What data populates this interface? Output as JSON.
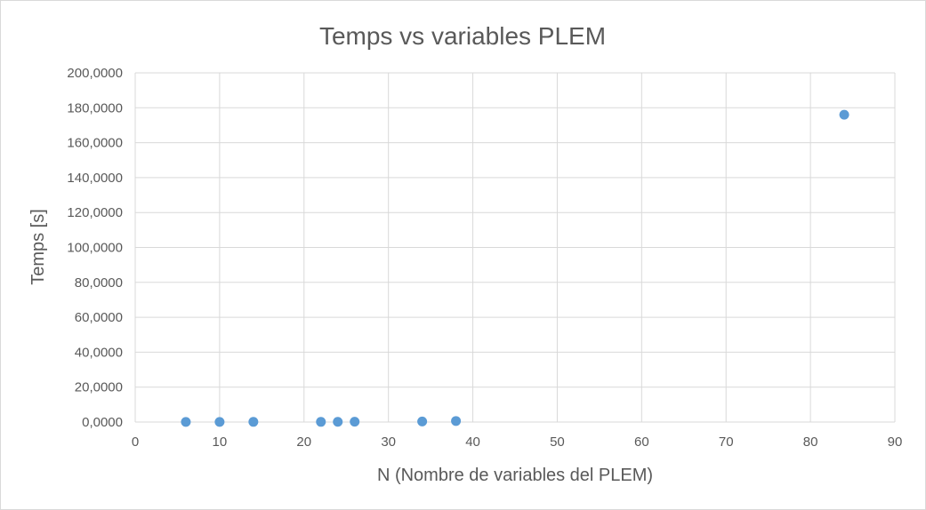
{
  "chart_data": {
    "type": "scatter",
    "title": "Temps vs variables PLEM",
    "xlabel": "N (Nombre de variables del PLEM)",
    "ylabel": "Temps [s]",
    "xlim": [
      0,
      90
    ],
    "ylim": [
      0,
      200
    ],
    "x_ticks": [
      0,
      10,
      20,
      30,
      40,
      50,
      60,
      70,
      80,
      90
    ],
    "x_tick_labels": [
      "0",
      "10",
      "20",
      "30",
      "40",
      "50",
      "60",
      "70",
      "80",
      "90"
    ],
    "y_ticks": [
      0,
      20,
      40,
      60,
      80,
      100,
      120,
      140,
      160,
      180,
      200
    ],
    "y_tick_labels": [
      "0,0000",
      "20,0000",
      "40,0000",
      "60,0000",
      "80,0000",
      "100,0000",
      "120,0000",
      "140,0000",
      "160,0000",
      "180,0000",
      "200,0000"
    ],
    "grid": true,
    "series": [
      {
        "color": "#5b9bd5",
        "points": [
          {
            "x": 6,
            "y": 0.05
          },
          {
            "x": 10,
            "y": 0.05
          },
          {
            "x": 14,
            "y": 0.1
          },
          {
            "x": 22,
            "y": 0.1
          },
          {
            "x": 24,
            "y": 0.15
          },
          {
            "x": 26,
            "y": 0.2
          },
          {
            "x": 34,
            "y": 0.3
          },
          {
            "x": 38,
            "y": 0.6
          },
          {
            "x": 84,
            "y": 176
          }
        ]
      }
    ]
  }
}
